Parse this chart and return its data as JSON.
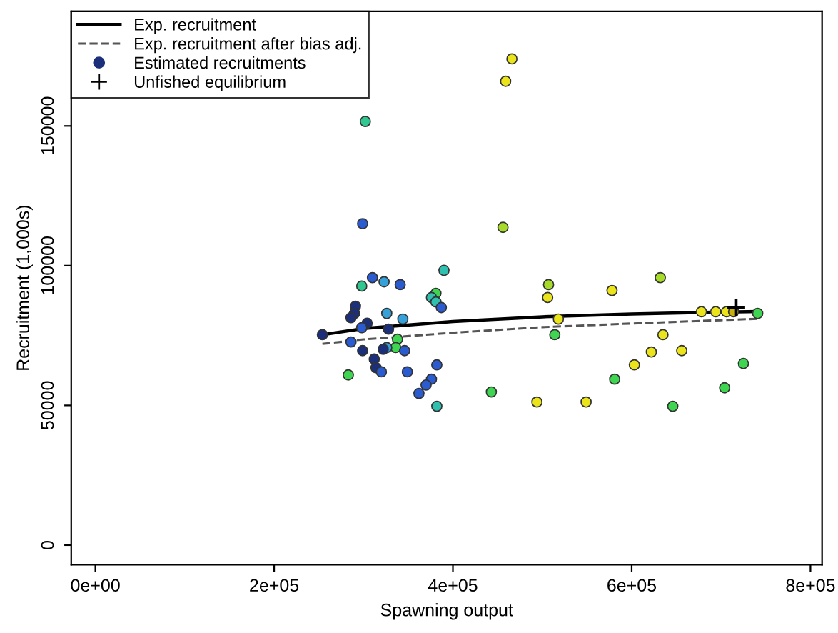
{
  "chart_data": {
    "type": "scatter",
    "xlabel": "Spawning output",
    "ylabel": "Recruitment (1,000s)",
    "xlim": [
      -27000,
      813000
    ],
    "ylim": [
      -7000,
      191000
    ],
    "xticks": [
      {
        "value": 0,
        "label": "0e+00"
      },
      {
        "value": 200000,
        "label": "2e+05"
      },
      {
        "value": 400000,
        "label": "4e+05"
      },
      {
        "value": 600000,
        "label": "6e+05"
      },
      {
        "value": 800000,
        "label": "8e+05"
      }
    ],
    "yticks": [
      0,
      50000,
      100000,
      150000
    ],
    "grid": false,
    "legend": "top left",
    "series": [
      {
        "name": "Exp. recruitment",
        "type": "line",
        "color": "#000000",
        "line_style": "solid",
        "marker": "none",
        "x": [
          254000,
          300000,
          400000,
          500000,
          600000,
          700000,
          741000
        ],
        "values": [
          75300,
          77500,
          80000,
          81700,
          82700,
          83400,
          83600
        ]
      },
      {
        "name": "Exp. recruitment after bias adj.",
        "type": "line",
        "color": "#555555",
        "line_style": "dashed",
        "marker": "none",
        "x": [
          254000,
          300000,
          400000,
          500000,
          600000,
          700000,
          741000
        ],
        "values": [
          72000,
          73600,
          76000,
          78000,
          79300,
          80500,
          81000
        ]
      },
      {
        "name": "Estimated recruitments",
        "color": "#1c2f7a",
        "marker": "circle",
        "x": [
          299000,
          456000,
          390000,
          310000,
          323000,
          341000,
          298000,
          507000,
          506000,
          381000,
          376000,
          381000,
          387000,
          291000,
          290000,
          286000,
          326000,
          344000,
          304000,
          298000,
          328000,
          518000,
          254000,
          514000,
          286000,
          338000,
          336000,
          326000,
          322000,
          299000,
          346000,
          312000,
          314000,
          320000,
          382000,
          349000,
          283000,
          376000,
          370000,
          362000,
          443000,
          382000,
          494000,
          549000,
          302000,
          466000,
          459000,
          632000,
          578000,
          678000,
          694000,
          706000,
          714000,
          741000,
          635000,
          622000,
          656000,
          603000,
          581000,
          725000,
          704000,
          646000
        ],
        "values": [
          115000,
          113700,
          98300,
          95700,
          94200,
          93200,
          92700,
          93200,
          88600,
          90100,
          88600,
          87000,
          85000,
          85500,
          82900,
          81400,
          82900,
          80900,
          79400,
          77800,
          77300,
          80900,
          75300,
          75300,
          72700,
          73700,
          70700,
          70700,
          70100,
          69600,
          69600,
          66600,
          63500,
          62000,
          64500,
          62000,
          60900,
          59400,
          57300,
          54300,
          54800,
          49700,
          51200,
          51200,
          151600,
          174000,
          166000,
          95700,
          91100,
          83500,
          83500,
          83500,
          83500,
          82900,
          75300,
          69100,
          69600,
          64500,
          59400,
          65000,
          56300,
          49700
        ],
        "colors": [
          "#2a5bd0",
          "#a6dc28",
          "#2fc0b0",
          "#2a5bd0",
          "#36a0d8",
          "#2a5bd0",
          "#30c890",
          "#a6dc28",
          "#ece41a",
          "#3ed650",
          "#2fc0b0",
          "#2fc0b0",
          "#2a5bd0",
          "#1c2f7a",
          "#1c2f7a",
          "#1c2f7a",
          "#36a0d8",
          "#36a0d8",
          "#1c2f7a",
          "#2a5bd0",
          "#1c2f7a",
          "#ece41a",
          "#1c2f7a",
          "#3ed650",
          "#2a5bd0",
          "#3ed650",
          "#3ed650",
          "#36a0d8",
          "#1c2f7a",
          "#1c2f7a",
          "#2a5bd0",
          "#1c2f7a",
          "#1c2f7a",
          "#2a5bd0",
          "#2a5bd0",
          "#2a5bd0",
          "#3ed650",
          "#2a5bd0",
          "#2a5bd0",
          "#2a5bd0",
          "#3ed650",
          "#2fc0b0",
          "#ece41a",
          "#ece41a",
          "#30c890",
          "#ece41a",
          "#ece41a",
          "#a6dc28",
          "#ece41a",
          "#ece41a",
          "#ece41a",
          "#ece41a",
          "#c8b010",
          "#3ed650",
          "#ece41a",
          "#ece41a",
          "#ece41a",
          "#ece41a",
          "#3ed650",
          "#3ed650",
          "#3ed650",
          "#3ed650"
        ]
      },
      {
        "name": "Unfished equilibrium",
        "color": "#000000",
        "marker": "cross",
        "x": [
          717000
        ],
        "values": [
          85000
        ]
      }
    ]
  }
}
